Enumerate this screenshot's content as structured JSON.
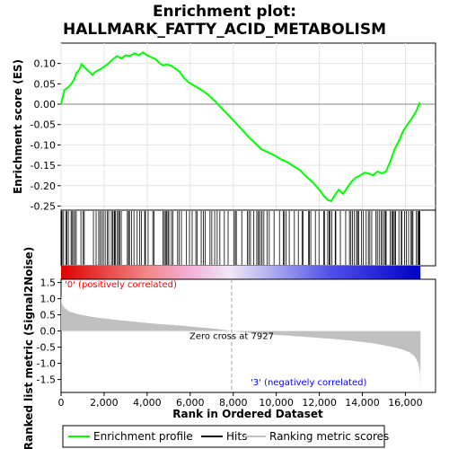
{
  "chart_data": {
    "type": "line",
    "title_line1": "Enrichment plot:",
    "title_line2": "HALLMARK_FATTY_ACID_METABOLISM",
    "es_panel": {
      "ylabel": "Enrichment score (ES)",
      "ylim": [
        -0.26,
        0.15
      ],
      "yticks": [
        0.1,
        0.05,
        0.0,
        -0.05,
        -0.1,
        -0.15,
        -0.2,
        -0.25
      ],
      "ytick_labels": [
        "0.10",
        "0.05",
        "0.00",
        "-0.05",
        "-0.10",
        "-0.15",
        "-0.20",
        "-0.25"
      ],
      "line_color": "#00ff00",
      "points": [
        [
          0,
          0.0
        ],
        [
          150,
          0.035
        ],
        [
          300,
          0.04
        ],
        [
          450,
          0.048
        ],
        [
          600,
          0.06
        ],
        [
          700,
          0.075
        ],
        [
          850,
          0.085
        ],
        [
          950,
          0.098
        ],
        [
          1100,
          0.09
        ],
        [
          1300,
          0.08
        ],
        [
          1450,
          0.072
        ],
        [
          1600,
          0.08
        ],
        [
          1800,
          0.085
        ],
        [
          2000,
          0.092
        ],
        [
          2200,
          0.1
        ],
        [
          2400,
          0.11
        ],
        [
          2600,
          0.118
        ],
        [
          2800,
          0.112
        ],
        [
          3000,
          0.12
        ],
        [
          3200,
          0.118
        ],
        [
          3400,
          0.125
        ],
        [
          3600,
          0.12
        ],
        [
          3800,
          0.127
        ],
        [
          4000,
          0.12
        ],
        [
          4200,
          0.115
        ],
        [
          4400,
          0.11
        ],
        [
          4600,
          0.1
        ],
        [
          4750,
          0.095
        ],
        [
          4900,
          0.098
        ],
        [
          5100,
          0.095
        ],
        [
          5300,
          0.088
        ],
        [
          5500,
          0.08
        ],
        [
          5700,
          0.065
        ],
        [
          5900,
          0.055
        ],
        [
          6100,
          0.048
        ],
        [
          6300,
          0.042
        ],
        [
          6600,
          0.032
        ],
        [
          6900,
          0.02
        ],
        [
          7200,
          0.005
        ],
        [
          7500,
          -0.012
        ],
        [
          7800,
          -0.028
        ],
        [
          8100,
          -0.045
        ],
        [
          8400,
          -0.062
        ],
        [
          8700,
          -0.08
        ],
        [
          9000,
          -0.095
        ],
        [
          9300,
          -0.11
        ],
        [
          9600,
          -0.118
        ],
        [
          9900,
          -0.125
        ],
        [
          10200,
          -0.135
        ],
        [
          10500,
          -0.142
        ],
        [
          10800,
          -0.152
        ],
        [
          11100,
          -0.162
        ],
        [
          11400,
          -0.178
        ],
        [
          11700,
          -0.192
        ],
        [
          12000,
          -0.21
        ],
        [
          12200,
          -0.225
        ],
        [
          12400,
          -0.235
        ],
        [
          12550,
          -0.238
        ],
        [
          12700,
          -0.225
        ],
        [
          12900,
          -0.21
        ],
        [
          13100,
          -0.22
        ],
        [
          13300,
          -0.205
        ],
        [
          13500,
          -0.19
        ],
        [
          13700,
          -0.18
        ],
        [
          13900,
          -0.175
        ],
        [
          14100,
          -0.168
        ],
        [
          14300,
          -0.17
        ],
        [
          14500,
          -0.175
        ],
        [
          14700,
          -0.165
        ],
        [
          14900,
          -0.17
        ],
        [
          15100,
          -0.165
        ],
        [
          15300,
          -0.14
        ],
        [
          15500,
          -0.11
        ],
        [
          15700,
          -0.09
        ],
        [
          15900,
          -0.065
        ],
        [
          16100,
          -0.05
        ],
        [
          16300,
          -0.035
        ],
        [
          16500,
          -0.018
        ],
        [
          16650,
          0.002
        ],
        [
          16700,
          0.0
        ]
      ]
    },
    "hits": {
      "positions": [
        12,
        26,
        46,
        48,
        119,
        228,
        271,
        339,
        466,
        510,
        578,
        637,
        707,
        923,
        1030,
        1079,
        1504,
        1628,
        1748,
        1818,
        1891,
        1967,
        2051,
        2143,
        2211,
        2339,
        2402,
        2468,
        2485,
        2521,
        2601,
        2674,
        2681,
        2724,
        2798,
        3079,
        3136,
        3178,
        3270,
        3386,
        3537,
        3657,
        3729,
        3886,
        3922,
        4045,
        4264,
        4320,
        4737,
        4800,
        4851,
        4907,
        4965,
        5009,
        5126,
        5196,
        5415,
        5493,
        5592,
        5827,
        5967,
        6090,
        6262,
        6329,
        6512,
        6615,
        6698,
        6920,
        7005,
        7138,
        7254,
        7379,
        7587,
        7762,
        8023,
        8095,
        8143,
        8397,
        8661,
        8727,
        8802,
        8956,
        9093,
        9162,
        9176,
        9249,
        9331,
        9337,
        9423,
        9570,
        9674,
        9897,
        10149,
        10333,
        10362,
        10452,
        10603,
        10840,
        11025,
        11197,
        11250,
        11503,
        11539,
        11604,
        11817,
        11985,
        12200,
        12240,
        12389,
        12453,
        12498,
        12584,
        12738,
        12766,
        12978,
        13225,
        13400,
        13466,
        13542,
        13633,
        13732,
        13777,
        13835,
        13953,
        14036,
        14177,
        14280,
        14348,
        14436,
        14633,
        14696,
        14783,
        14869,
        14936,
        15017,
        15071,
        15105,
        15298,
        15363,
        15413,
        15442,
        15515,
        15547,
        15697,
        15808,
        15838,
        15961,
        16043,
        16148,
        16261,
        16309,
        16350,
        16511,
        16574,
        16619,
        16650,
        16673
      ],
      "gradient_stops": [
        {
          "offset": 0.0,
          "color": "#e00000"
        },
        {
          "offset": 0.24,
          "color": "#f08888"
        },
        {
          "offset": 0.36,
          "color": "#f2b0d8"
        },
        {
          "offset": 0.47,
          "color": "#f0e8f4"
        },
        {
          "offset": 0.58,
          "color": "#b0b0f0"
        },
        {
          "offset": 0.75,
          "color": "#5050e8"
        },
        {
          "offset": 1.0,
          "color": "#0000c8"
        }
      ]
    },
    "metric_panel": {
      "ylabel": "Ranked list metric (Signal2Noise)",
      "ylim": [
        -1.9,
        1.6
      ],
      "yticks": [
        1.5,
        1.0,
        0.5,
        0.0,
        -0.5,
        -1.0,
        -1.5
      ],
      "ytick_labels": [
        "1.5",
        "1.0",
        "0.5",
        "0.0",
        "-0.5",
        "-1.0",
        "-1.5"
      ],
      "fill_color": "#c0c0c0",
      "points": [
        [
          0,
          1.1
        ],
        [
          40,
          0.85
        ],
        [
          150,
          0.72
        ],
        [
          400,
          0.6
        ],
        [
          800,
          0.52
        ],
        [
          1500,
          0.43
        ],
        [
          2500,
          0.35
        ],
        [
          3500,
          0.28
        ],
        [
          4500,
          0.22
        ],
        [
          5500,
          0.17
        ],
        [
          6500,
          0.11
        ],
        [
          7300,
          0.06
        ],
        [
          7927,
          0.0
        ],
        [
          8500,
          -0.04
        ],
        [
          9500,
          -0.1
        ],
        [
          10500,
          -0.14
        ],
        [
          11500,
          -0.19
        ],
        [
          12500,
          -0.24
        ],
        [
          13500,
          -0.3
        ],
        [
          14500,
          -0.38
        ],
        [
          15300,
          -0.48
        ],
        [
          15800,
          -0.56
        ],
        [
          16200,
          -0.66
        ],
        [
          16450,
          -0.8
        ],
        [
          16600,
          -1.0
        ],
        [
          16680,
          -1.3
        ],
        [
          16700,
          -1.78
        ]
      ],
      "zero_cross_label": "Zero cross at 7927",
      "zero_cross_x": 7927,
      "pos_label": "'0' (positively correlated)",
      "pos_color": "#ff0000",
      "neg_label": "'3' (negatively correlated)",
      "neg_color": "#0000ff"
    },
    "xaxis": {
      "xlabel": "Rank in Ordered Dataset",
      "xlim": [
        0,
        17400
      ],
      "xticks": [
        0,
        2000,
        4000,
        6000,
        8000,
        10000,
        12000,
        14000,
        16000
      ],
      "xtick_labels": [
        "0",
        "2,000",
        "4,000",
        "6,000",
        "8,000",
        "10,000",
        "12,000",
        "14,000",
        "16,000"
      ],
      "n": 16700
    },
    "legend": {
      "position": "bottom",
      "items": [
        {
          "label": "Enrichment profile",
          "color": "#00ff00"
        },
        {
          "label": "Hits",
          "color": "#000000"
        },
        {
          "label": "Ranking metric scores",
          "color": "#c0c0c0"
        }
      ]
    }
  }
}
